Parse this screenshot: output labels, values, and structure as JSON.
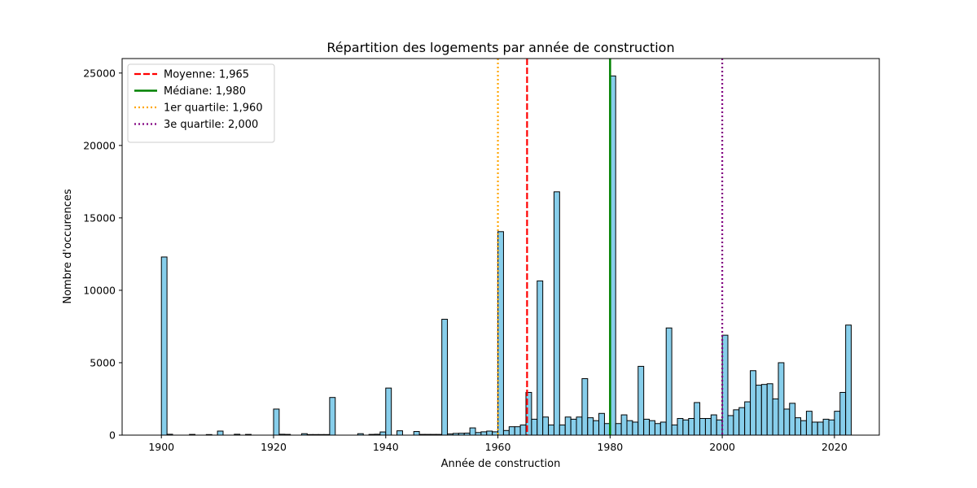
{
  "chart_data": {
    "type": "bar",
    "title": "Répartition des logements par année de construction",
    "xlabel": "Année de construction",
    "ylabel": "Nombre d'occurences",
    "xlim": [
      1893,
      2028
    ],
    "ylim": [
      0,
      26000
    ],
    "xticks": [
      1900,
      1920,
      1940,
      1960,
      1980,
      2000,
      2020
    ],
    "yticks": [
      0,
      5000,
      10000,
      15000,
      20000,
      25000
    ],
    "bar_color": "#87ceeb",
    "bar_edge_color": "#000000",
    "bin_width": 1,
    "bins": [
      {
        "x": 1900,
        "value": 12300
      },
      {
        "x": 1901,
        "value": 60
      },
      {
        "x": 1905,
        "value": 50
      },
      {
        "x": 1908,
        "value": 40
      },
      {
        "x": 1910,
        "value": 280
      },
      {
        "x": 1913,
        "value": 60
      },
      {
        "x": 1915,
        "value": 50
      },
      {
        "x": 1920,
        "value": 1800
      },
      {
        "x": 1921,
        "value": 60
      },
      {
        "x": 1922,
        "value": 50
      },
      {
        "x": 1925,
        "value": 100
      },
      {
        "x": 1926,
        "value": 40
      },
      {
        "x": 1927,
        "value": 40
      },
      {
        "x": 1928,
        "value": 40
      },
      {
        "x": 1929,
        "value": 40
      },
      {
        "x": 1930,
        "value": 2600
      },
      {
        "x": 1935,
        "value": 100
      },
      {
        "x": 1937,
        "value": 50
      },
      {
        "x": 1938,
        "value": 60
      },
      {
        "x": 1939,
        "value": 220
      },
      {
        "x": 1940,
        "value": 3250
      },
      {
        "x": 1942,
        "value": 300
      },
      {
        "x": 1945,
        "value": 250
      },
      {
        "x": 1946,
        "value": 50
      },
      {
        "x": 1947,
        "value": 50
      },
      {
        "x": 1948,
        "value": 50
      },
      {
        "x": 1949,
        "value": 50
      },
      {
        "x": 1950,
        "value": 8000
      },
      {
        "x": 1951,
        "value": 80
      },
      {
        "x": 1952,
        "value": 120
      },
      {
        "x": 1953,
        "value": 130
      },
      {
        "x": 1954,
        "value": 140
      },
      {
        "x": 1955,
        "value": 500
      },
      {
        "x": 1956,
        "value": 180
      },
      {
        "x": 1957,
        "value": 230
      },
      {
        "x": 1958,
        "value": 280
      },
      {
        "x": 1959,
        "value": 230
      },
      {
        "x": 1960,
        "value": 14050
      },
      {
        "x": 1961,
        "value": 320
      },
      {
        "x": 1962,
        "value": 580
      },
      {
        "x": 1963,
        "value": 580
      },
      {
        "x": 1964,
        "value": 700
      },
      {
        "x": 1965,
        "value": 2950
      },
      {
        "x": 1966,
        "value": 1100
      },
      {
        "x": 1967,
        "value": 10650
      },
      {
        "x": 1968,
        "value": 1250
      },
      {
        "x": 1969,
        "value": 700
      },
      {
        "x": 1970,
        "value": 16800
      },
      {
        "x": 1971,
        "value": 700
      },
      {
        "x": 1972,
        "value": 1250
      },
      {
        "x": 1973,
        "value": 1100
      },
      {
        "x": 1974,
        "value": 1250
      },
      {
        "x": 1975,
        "value": 3900
      },
      {
        "x": 1976,
        "value": 1200
      },
      {
        "x": 1977,
        "value": 1000
      },
      {
        "x": 1978,
        "value": 1500
      },
      {
        "x": 1979,
        "value": 800
      },
      {
        "x": 1980,
        "value": 24800
      },
      {
        "x": 1981,
        "value": 800
      },
      {
        "x": 1982,
        "value": 1400
      },
      {
        "x": 1983,
        "value": 1000
      },
      {
        "x": 1984,
        "value": 900
      },
      {
        "x": 1985,
        "value": 4750
      },
      {
        "x": 1986,
        "value": 1100
      },
      {
        "x": 1987,
        "value": 1000
      },
      {
        "x": 1988,
        "value": 800
      },
      {
        "x": 1989,
        "value": 900
      },
      {
        "x": 1990,
        "value": 7400
      },
      {
        "x": 1991,
        "value": 700
      },
      {
        "x": 1992,
        "value": 1150
      },
      {
        "x": 1993,
        "value": 1050
      },
      {
        "x": 1994,
        "value": 1150
      },
      {
        "x": 1995,
        "value": 2250
      },
      {
        "x": 1996,
        "value": 1150
      },
      {
        "x": 1997,
        "value": 1150
      },
      {
        "x": 1998,
        "value": 1400
      },
      {
        "x": 1999,
        "value": 1050
      },
      {
        "x": 2000,
        "value": 6900
      },
      {
        "x": 2001,
        "value": 1350
      },
      {
        "x": 2002,
        "value": 1750
      },
      {
        "x": 2003,
        "value": 1900
      },
      {
        "x": 2004,
        "value": 2300
      },
      {
        "x": 2005,
        "value": 4450
      },
      {
        "x": 2006,
        "value": 3450
      },
      {
        "x": 2007,
        "value": 3500
      },
      {
        "x": 2008,
        "value": 3550
      },
      {
        "x": 2009,
        "value": 2500
      },
      {
        "x": 2010,
        "value": 5000
      },
      {
        "x": 2011,
        "value": 1800
      },
      {
        "x": 2012,
        "value": 2200
      },
      {
        "x": 2013,
        "value": 1200
      },
      {
        "x": 2014,
        "value": 1000
      },
      {
        "x": 2015,
        "value": 1650
      },
      {
        "x": 2016,
        "value": 900
      },
      {
        "x": 2017,
        "value": 900
      },
      {
        "x": 2018,
        "value": 1100
      },
      {
        "x": 2019,
        "value": 1050
      },
      {
        "x": 2020,
        "value": 1650
      },
      {
        "x": 2021,
        "value": 2950
      },
      {
        "x": 2022,
        "value": 7600
      }
    ],
    "reference_lines": [
      {
        "name": "Moyenne: 1,965",
        "x": 1965.2,
        "color": "#ff0000",
        "style": "dashed"
      },
      {
        "name": "Médiane: 1,980",
        "x": 1980,
        "color": "#008000",
        "style": "solid"
      },
      {
        "name": "1er quartile: 1,960",
        "x": 1960,
        "color": "#ffa500",
        "style": "dotted"
      },
      {
        "name": "3e quartile: 2,000",
        "x": 2000,
        "color": "#800080",
        "style": "dotted"
      }
    ],
    "legend_position": "top-left",
    "grid": false
  }
}
